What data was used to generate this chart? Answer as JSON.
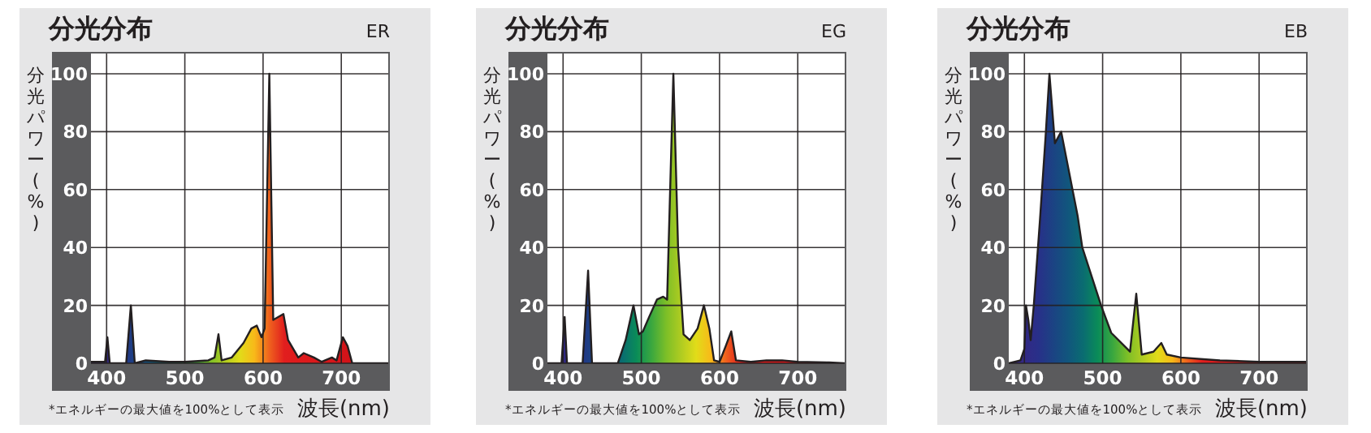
{
  "chart_data": [
    {
      "type": "area",
      "title": "分光分布",
      "subtitle": "ER",
      "xlabel": "波長(nm)",
      "ylabel": "分光パワー(%)",
      "annotations": [
        "*エネルギーの最大値を100%として表示"
      ],
      "x": [
        380,
        398,
        401,
        404,
        425,
        431,
        436,
        450,
        480,
        500,
        530,
        538,
        543,
        547,
        560,
        575,
        585,
        592,
        598,
        602,
        608,
        613,
        626,
        632,
        645,
        652,
        665,
        675,
        688,
        694,
        702,
        708,
        714,
        760
      ],
      "series": [
        {
          "color": "#231f20",
          "values": [
            0.5,
            0.5,
            9,
            0,
            0,
            20,
            0,
            1,
            0.5,
            0.5,
            1,
            2,
            10,
            1,
            2,
            7,
            12,
            13,
            9,
            12,
            100,
            15,
            17,
            8,
            2,
            3.5,
            2,
            0.5,
            2,
            1,
            9,
            6,
            0,
            0
          ]
        }
      ],
      "xlim": [
        380,
        760
      ],
      "ylim": [
        0,
        107
      ],
      "xticks": [
        400,
        500,
        600,
        700
      ],
      "yticks": [
        0,
        20,
        40,
        60,
        80,
        100
      ],
      "grid": true
    },
    {
      "type": "area",
      "title": "分光分布",
      "subtitle": "EG",
      "xlabel": "波長(nm)",
      "ylabel": "分光パワー(%)",
      "annotations": [
        "*エネルギーの最大値を100%として表示"
      ],
      "x": [
        380,
        398,
        402,
        405,
        425,
        432,
        437,
        470,
        480,
        490,
        497,
        502,
        510,
        520,
        528,
        533,
        541,
        547,
        554,
        562,
        572,
        580,
        587,
        593,
        600,
        608,
        615,
        621,
        640,
        660,
        680,
        700,
        740,
        760
      ],
      "series": [
        {
          "color": "#231f20",
          "values": [
            0,
            0,
            16,
            0,
            0,
            32,
            0,
            0,
            8,
            20,
            10,
            11,
            16,
            22,
            23,
            22,
            100,
            40,
            10,
            8,
            12,
            20,
            12,
            1,
            0.5,
            6,
            11,
            1,
            0.5,
            1,
            1,
            0.5,
            0.3,
            0
          ]
        }
      ],
      "xlim": [
        380,
        760
      ],
      "ylim": [
        0,
        107
      ],
      "xticks": [
        400,
        500,
        600,
        700
      ],
      "yticks": [
        0,
        20,
        40,
        60,
        80,
        100
      ],
      "grid": true
    },
    {
      "type": "area",
      "title": "分光分布",
      "subtitle": "EB",
      "xlabel": "波長(nm)",
      "ylabel": "分光パワー(%)",
      "annotations": [
        "*エネルギーの最大値を100%として表示"
      ],
      "x": [
        380,
        395,
        400,
        402,
        405,
        408,
        412,
        420,
        427,
        432,
        439,
        447,
        468,
        474,
        498,
        511,
        535,
        543,
        550,
        565,
        575,
        582,
        600,
        650,
        700,
        760
      ],
      "series": [
        {
          "color": "#231f20",
          "values": [
            0,
            1,
            5,
            20,
            15,
            8,
            20,
            50,
            78,
            100,
            76,
            80,
            51,
            40,
            20,
            10.5,
            4,
            24,
            3,
            4,
            7,
            3,
            2,
            1,
            0.5,
            0.5
          ]
        }
      ],
      "xlim": [
        380,
        760
      ],
      "ylim": [
        0,
        107
      ],
      "xticks": [
        400,
        500,
        600,
        700
      ],
      "yticks": [
        0,
        20,
        40,
        60,
        80,
        100
      ],
      "grid": true
    }
  ]
}
